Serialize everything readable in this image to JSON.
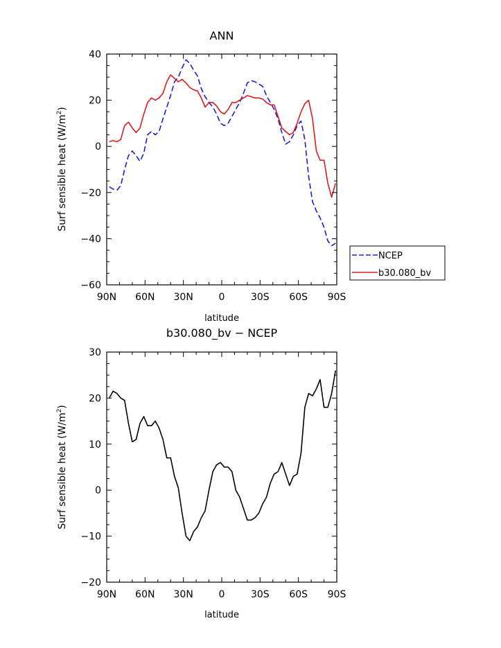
{
  "chart_data": [
    {
      "type": "line",
      "title": "ANN",
      "xlabel": "latitude",
      "ylabel": "Surf sensible heat (W/m²)",
      "ylabel_parts": [
        "Surf sensible heat (W/m",
        "2",
        ")"
      ],
      "xlim": [
        -90,
        90
      ],
      "ylim": [
        -60,
        40
      ],
      "x_ticks": [
        {
          "value": -90,
          "label": "90N"
        },
        {
          "value": -60,
          "label": "60N"
        },
        {
          "value": -30,
          "label": "30N"
        },
        {
          "value": 0,
          "label": "0"
        },
        {
          "value": 30,
          "label": "30S"
        },
        {
          "value": 60,
          "label": "60S"
        },
        {
          "value": 90,
          "label": "90S"
        }
      ],
      "y_ticks": [
        {
          "value": -60,
          "label": "−60"
        },
        {
          "value": -40,
          "label": "−40"
        },
        {
          "value": -20,
          "label": "−20"
        },
        {
          "value": 0,
          "label": "0"
        },
        {
          "value": 20,
          "label": "20"
        },
        {
          "value": 40,
          "label": "40"
        }
      ],
      "legend_position": "right-outside",
      "series": [
        {
          "name": "NCEP",
          "color": "#1a1adc",
          "dash": "dashed",
          "x": [
            -88,
            -85,
            -82,
            -79,
            -76,
            -73,
            -70,
            -67,
            -64,
            -61,
            -58,
            -55,
            -52,
            -49,
            -46,
            -43,
            -40,
            -37,
            -34,
            -31,
            -28,
            -25,
            -22,
            -19,
            -16,
            -13,
            -10,
            -7,
            -4,
            -1,
            2,
            5,
            8,
            11,
            14,
            17,
            20,
            23,
            26,
            29,
            32,
            35,
            38,
            41,
            44,
            47,
            50,
            53,
            56,
            59,
            62,
            65,
            68,
            71,
            74,
            77,
            80,
            83,
            86,
            89
          ],
          "values": [
            -17.5,
            -18.5,
            -19,
            -17,
            -10,
            -4,
            -2,
            -4,
            -6.5,
            -3,
            5,
            6.5,
            5,
            6.5,
            12,
            17,
            22,
            28,
            30,
            34,
            37.5,
            36,
            33,
            30.5,
            25,
            21.5,
            19,
            17,
            14,
            10,
            9,
            10,
            13,
            16,
            19,
            23,
            27.5,
            28.5,
            28,
            27,
            26,
            22,
            19,
            16,
            12,
            6,
            1,
            2,
            5,
            9,
            11,
            3,
            -13,
            -24,
            -28,
            -31,
            -35,
            -41,
            -43,
            -42
          ]
        },
        {
          "name": "b30.080_bv",
          "color": "#dc1a1a",
          "dash": "solid",
          "x": [
            -88,
            -85,
            -82,
            -79,
            -76,
            -73,
            -70,
            -67,
            -64,
            -61,
            -58,
            -55,
            -52,
            -49,
            -46,
            -43,
            -40,
            -37,
            -34,
            -31,
            -28,
            -25,
            -22,
            -19,
            -16,
            -13,
            -10,
            -7,
            -4,
            -1,
            2,
            5,
            8,
            11,
            14,
            17,
            20,
            23,
            26,
            29,
            32,
            35,
            38,
            41,
            44,
            47,
            50,
            53,
            56,
            59,
            62,
            65,
            68,
            71,
            74,
            77,
            80,
            83,
            86,
            89
          ],
          "values": [
            2,
            2.5,
            2,
            3,
            9,
            10.5,
            8,
            6,
            8,
            14,
            19,
            21,
            20,
            21,
            23,
            28,
            31,
            29.5,
            28,
            29,
            27.5,
            25.5,
            24.5,
            24,
            21,
            17,
            19,
            19,
            17.5,
            15,
            14,
            16,
            19,
            19,
            20,
            21,
            22,
            21.5,
            21,
            21,
            20.5,
            19,
            18,
            18,
            13,
            8,
            6.5,
            5,
            6,
            10,
            15,
            18.5,
            20,
            12,
            -2,
            -6,
            -6,
            -16,
            -22,
            -16
          ]
        }
      ]
    },
    {
      "type": "line",
      "title": "b30.080_bv − NCEP",
      "xlabel": "latitude",
      "ylabel": "Surf sensible heat (W/m²)",
      "ylabel_parts": [
        "Surf sensible heat (W/m",
        "2",
        ")"
      ],
      "xlim": [
        -90,
        90
      ],
      "ylim": [
        -20,
        30
      ],
      "x_ticks": [
        {
          "value": -90,
          "label": "90N"
        },
        {
          "value": -60,
          "label": "60N"
        },
        {
          "value": -30,
          "label": "30N"
        },
        {
          "value": 0,
          "label": "0"
        },
        {
          "value": 30,
          "label": "30S"
        },
        {
          "value": 60,
          "label": "60S"
        },
        {
          "value": 90,
          "label": "90S"
        }
      ],
      "y_ticks": [
        {
          "value": -20,
          "label": "−20"
        },
        {
          "value": -10,
          "label": "−10"
        },
        {
          "value": 0,
          "label": "0"
        },
        {
          "value": 10,
          "label": "10"
        },
        {
          "value": 20,
          "label": "20"
        },
        {
          "value": 30,
          "label": "30"
        }
      ],
      "series": [
        {
          "name": "b30.080_bv − NCEP",
          "color": "#000000",
          "dash": "solid",
          "x": [
            -88,
            -85,
            -82,
            -79,
            -76,
            -73,
            -70,
            -67,
            -64,
            -61,
            -58,
            -55,
            -52,
            -49,
            -46,
            -43,
            -40,
            -37,
            -34,
            -31,
            -28,
            -25,
            -22,
            -19,
            -16,
            -13,
            -10,
            -7,
            -4,
            -1,
            2,
            5,
            8,
            11,
            14,
            17,
            20,
            23,
            26,
            29,
            32,
            35,
            38,
            41,
            44,
            47,
            50,
            53,
            56,
            59,
            62,
            65,
            68,
            71,
            74,
            77,
            80,
            83,
            86,
            89
          ],
          "values": [
            20,
            21.5,
            21,
            20,
            19.5,
            14.5,
            10.5,
            11,
            14.5,
            16,
            14,
            14,
            15,
            13.5,
            11,
            7,
            7,
            3,
            0.5,
            -5,
            -10,
            -11,
            -9,
            -8,
            -6,
            -4.5,
            0,
            4,
            5.5,
            6,
            5,
            5,
            4,
            0,
            -1.5,
            -4,
            -6.5,
            -6.5,
            -6,
            -5,
            -3,
            -1.5,
            1.5,
            3.5,
            4,
            6,
            3.5,
            1,
            3,
            3.5,
            8,
            18,
            21,
            20.5,
            22,
            24,
            18,
            18,
            21,
            26
          ]
        }
      ]
    }
  ]
}
